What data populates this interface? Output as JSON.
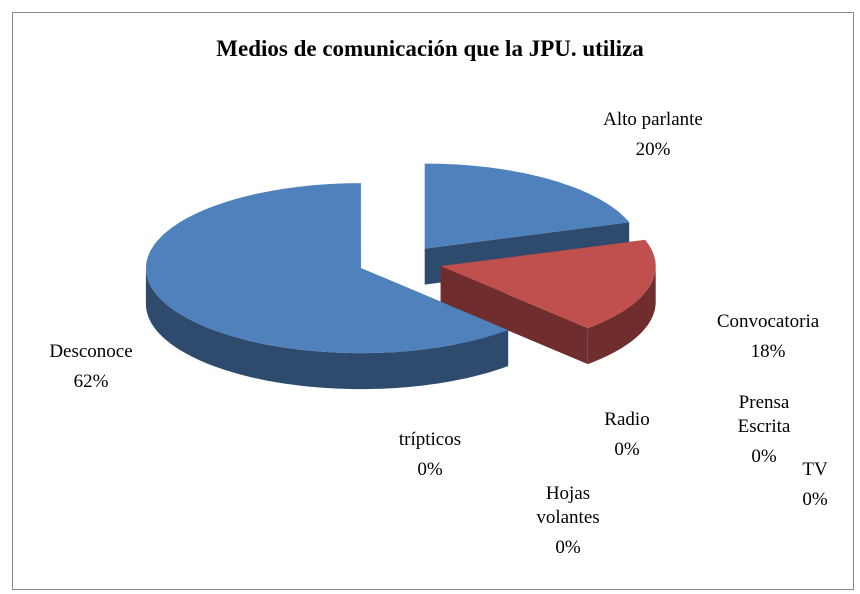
{
  "chart_data": {
    "type": "pie",
    "title": "Medios de comunicación que la JPU. utiliza",
    "categories": [
      "Alto parlante",
      "Convocatoria",
      "Prensa Escrita",
      "TV",
      "Hojas volantes",
      "Radio",
      "trípticos",
      "Desconoce"
    ],
    "values": [
      20,
      18,
      0,
      0,
      0,
      0,
      0,
      62
    ],
    "value_labels": [
      "20%",
      "18%",
      "0%",
      "0%",
      "0%",
      "0%",
      "0%",
      "62%"
    ],
    "colors": [
      "#4f81bd",
      "#c0504d",
      "#9bbb59",
      "#8064a2",
      "#4bacc6",
      "#f79646",
      "#2c4d75",
      "#4f81bd"
    ]
  }
}
